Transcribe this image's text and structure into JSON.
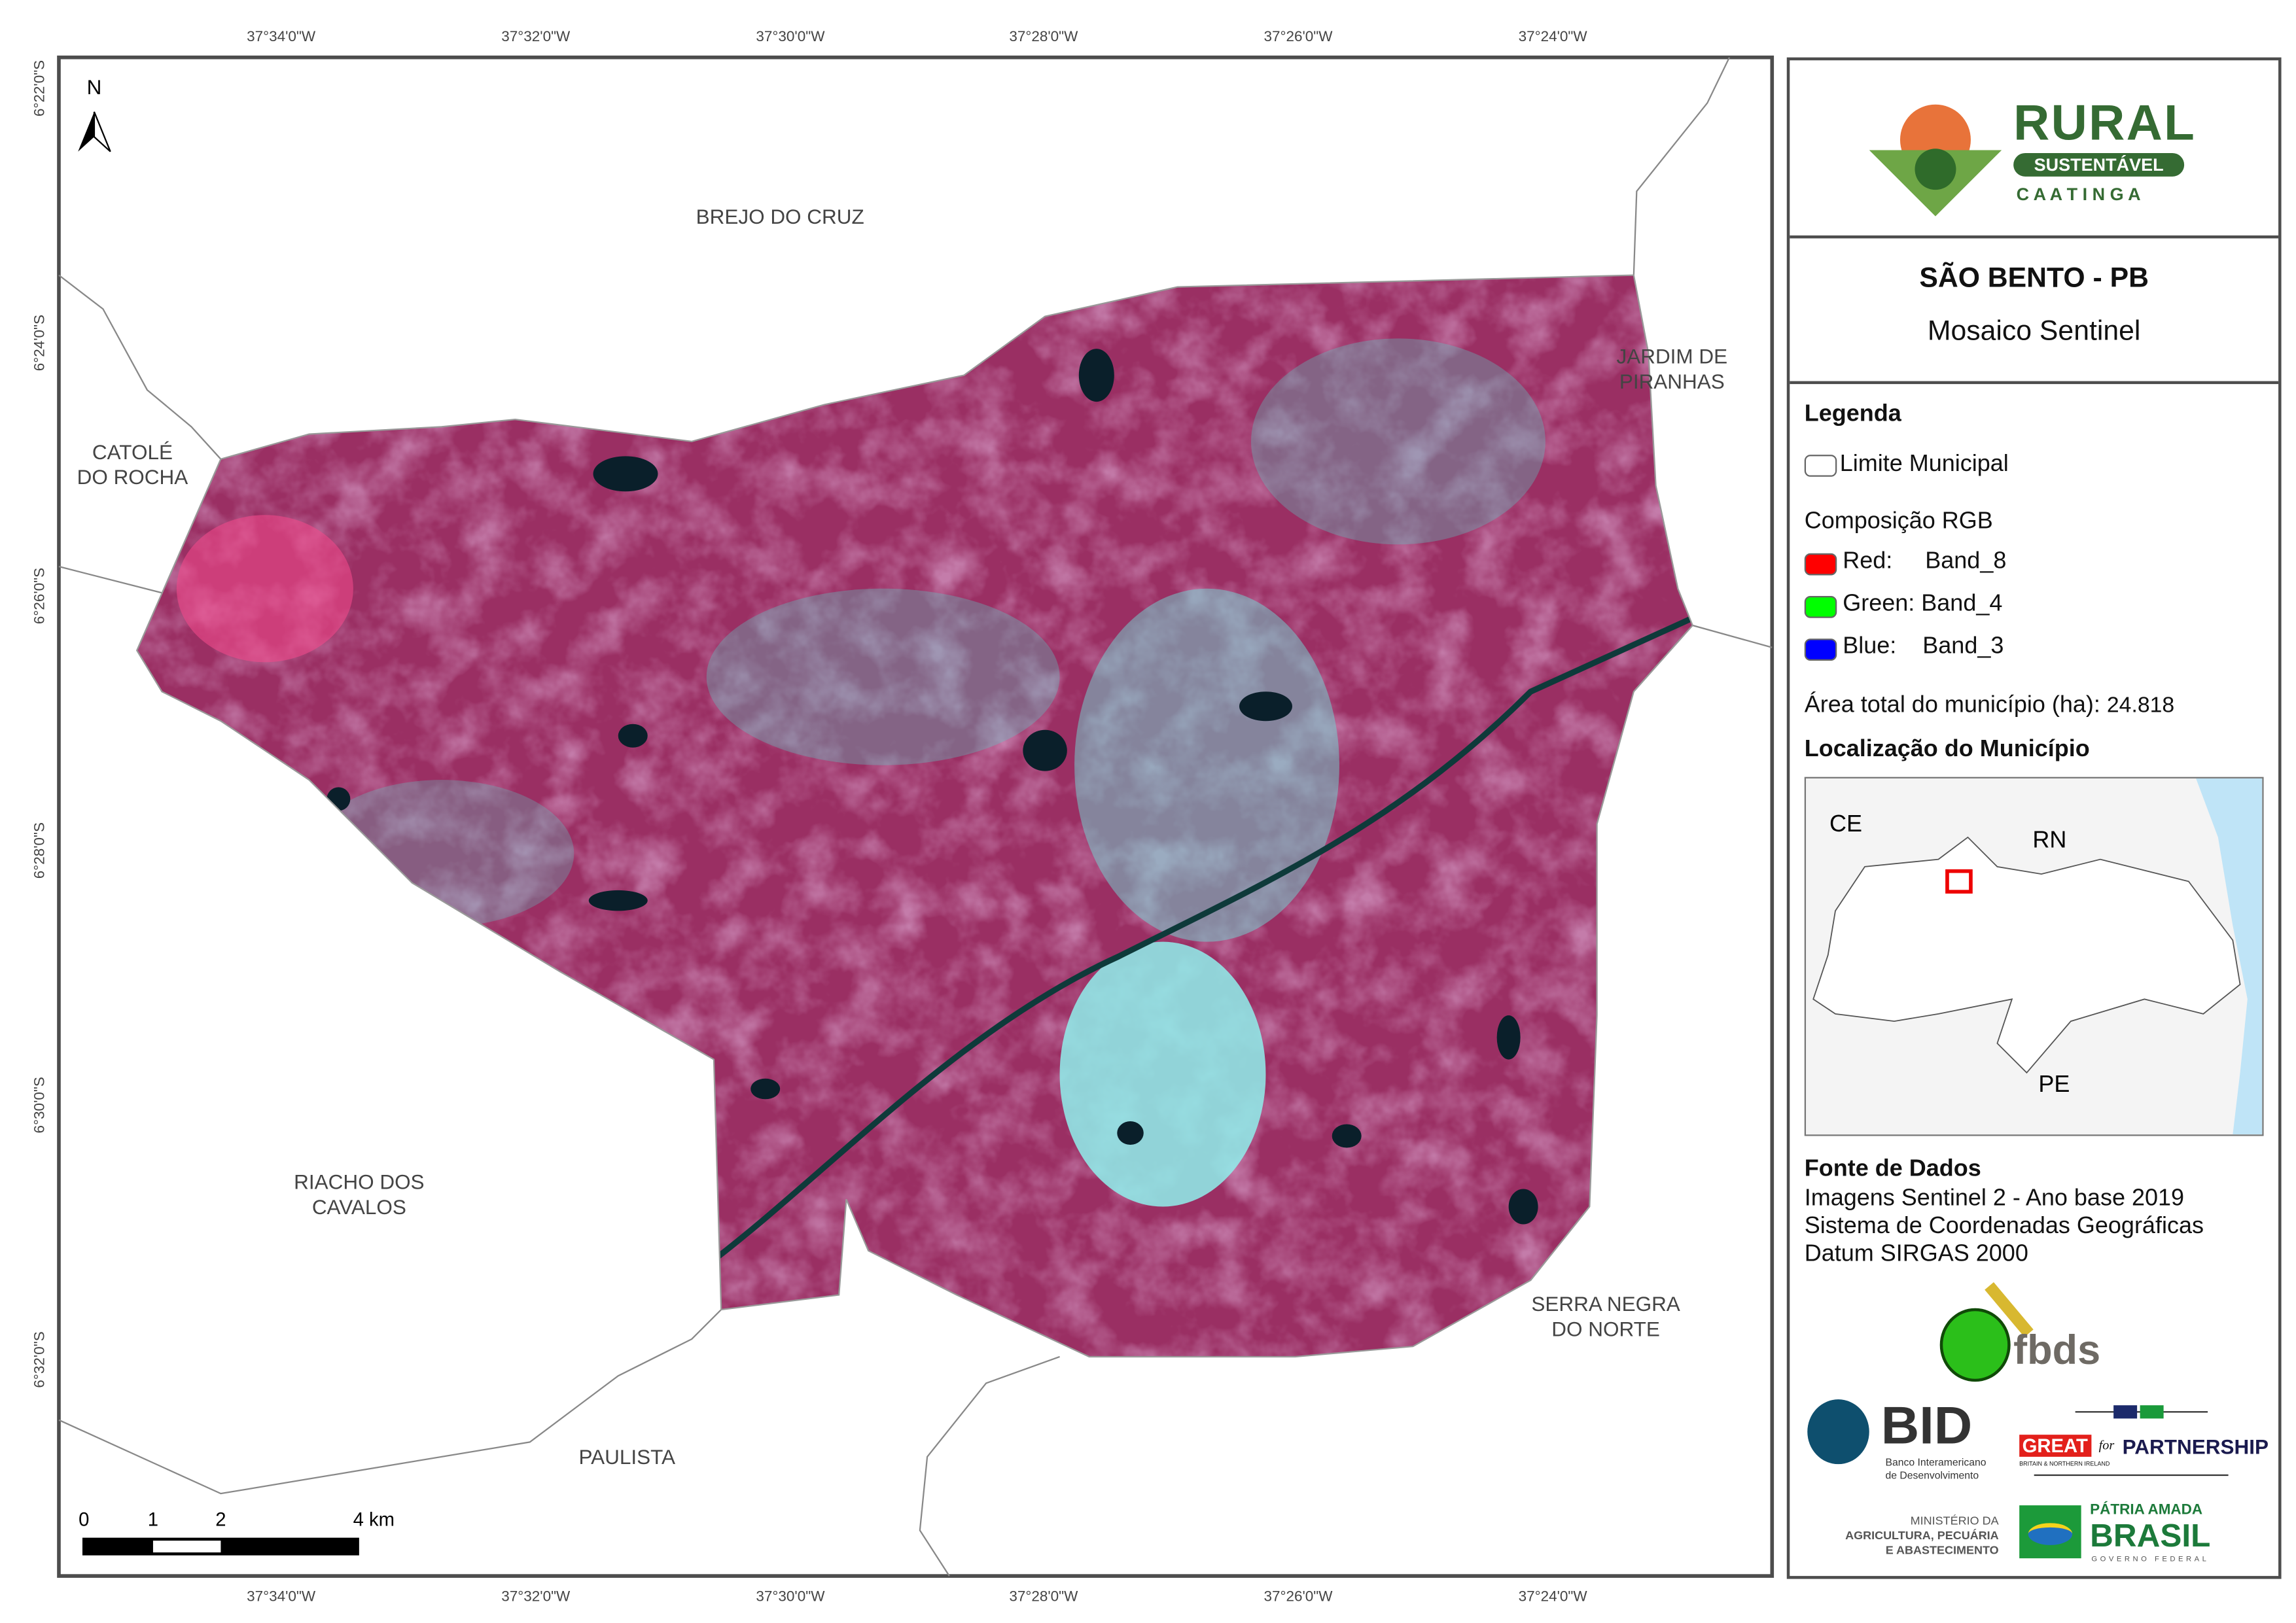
{
  "map": {
    "north_label": "N",
    "top_ticks": [
      "37°34'0\"W",
      "37°32'0\"W",
      "37°30'0\"W",
      "37°28'0\"W",
      "37°26'0\"W",
      "37°24'0\"W"
    ],
    "bottom_ticks": [
      "37°34'0\"W",
      "37°32'0\"W",
      "37°30'0\"W",
      "37°28'0\"W",
      "37°26'0\"W",
      "37°24'0\"W"
    ],
    "left_ticks": [
      "6°22'0\"S",
      "6°24'0\"S",
      "6°26'0\"S",
      "6°28'0\"S",
      "6°30'0\"S",
      "6°32'0\"S"
    ],
    "neighbors": {
      "brejo": "BREJO DO CRUZ",
      "jardim_1": "JARDIM DE",
      "jardim_2": "PIRANHAS",
      "catole_1": "CATOLÉ",
      "catole_2": "DO ROCHA",
      "riacho_1": "RIACHO DOS",
      "riacho_2": "CAVALOS",
      "serra_1": "SERRA NEGRA",
      "serra_2": "DO NORTE",
      "paulista": "PAULISTA"
    },
    "scale": {
      "l0": "0",
      "l1": "1",
      "l2": "2",
      "l4": "4 km"
    }
  },
  "panel": {
    "logo": {
      "rural": "RURAL",
      "sustentavel": "SUSTENTÁVEL",
      "caatinga": "C A A T I N G A"
    },
    "title": "SÃO BENTO - PB",
    "subtitle": "Mosaico Sentinel",
    "legend": {
      "heading": "Legenda",
      "limite": "Limite Municipal",
      "rgb_heading": "Composição RGB",
      "red": "Red:     Band_8",
      "green": "Green: Band_4",
      "blue": "Blue:    Band_3",
      "red_color": "#ff0000",
      "green_color": "#00ff00",
      "blue_color": "#0000ff",
      "area_label": "Área total do município (ha):",
      "area_value": "24.818"
    },
    "location": {
      "heading": "Localização do Município",
      "ce": "CE",
      "rn": "RN",
      "pe": "PE"
    },
    "source": {
      "heading": "Fonte de Dados",
      "line1": "Imagens Sentinel 2 - Ano base 2019",
      "line2": "Sistema de Coordenadas Geográficas",
      "line3": "Datum SIRGAS 2000"
    },
    "logos": {
      "fbds": "fbds",
      "bid": "BID",
      "bid_sub1": "Banco Interamericano",
      "bid_sub2": "de Desenvolvimento",
      "great": "GREAT",
      "great_sub": "BRITAIN & NORTHERN IRELAND",
      "for": "for",
      "partnership": "PARTNERSHIP",
      "min1": "MINISTÉRIO DA",
      "min2": "AGRICULTURA, PECUÁRIA",
      "min3": "E ABASTECIMENTO",
      "patria": "PÁTRIA AMADA",
      "brasil": "BRASIL",
      "gov": "GOVERNO FEDERAL"
    }
  }
}
